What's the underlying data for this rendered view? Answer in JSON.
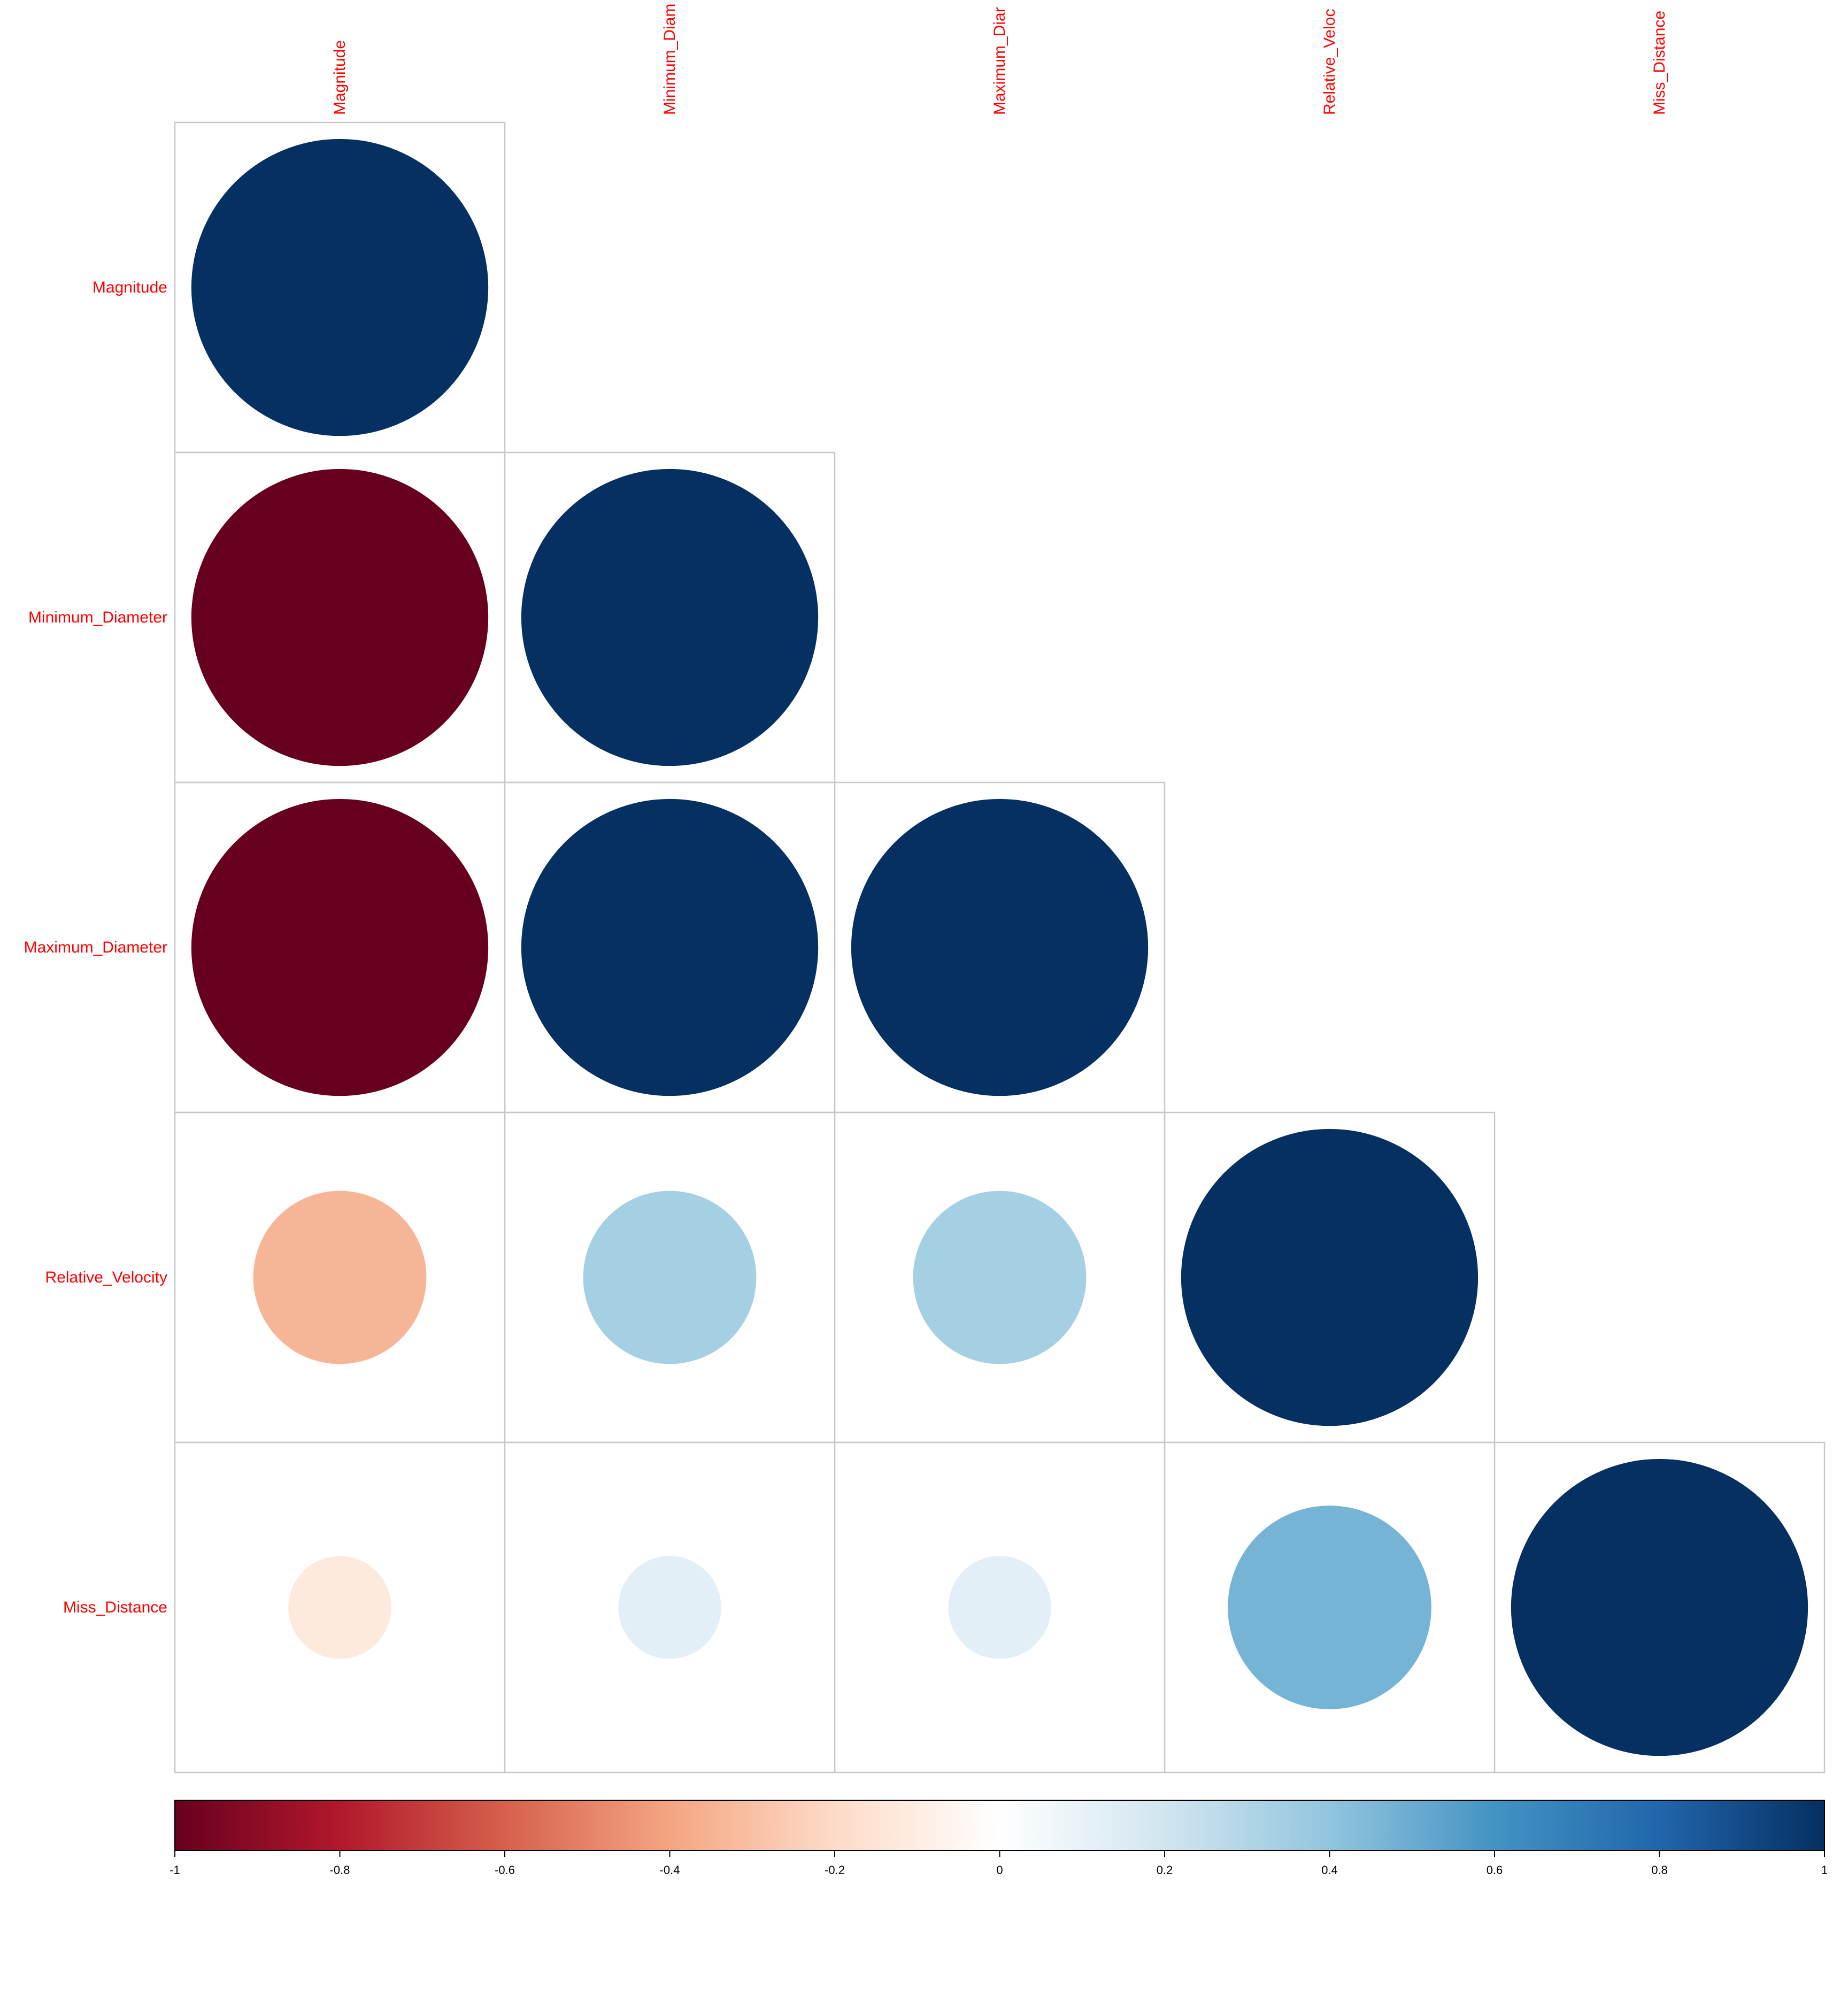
{
  "chart_data": {
    "type": "heatmap",
    "subtype": "correlation-circles-lower-triangle",
    "variables": [
      "Magnitude",
      "Minimum_Diameter",
      "Maximum_Diameter",
      "Relative_Velocity",
      "Miss_Distance"
    ],
    "column_labels": [
      "Magnitude",
      "Minimum_Diam",
      "Maximum_Diar",
      "Relative_Veloc",
      "Miss_Distance"
    ],
    "matrix": [
      [
        1.0,
        null,
        null,
        null,
        null
      ],
      [
        -1.0,
        1.0,
        null,
        null,
        null
      ],
      [
        -1.0,
        1.0,
        1.0,
        null,
        null
      ],
      [
        -0.34,
        0.34,
        0.34,
        1.0,
        null
      ],
      [
        -0.12,
        0.12,
        0.12,
        0.47,
        1.0
      ]
    ],
    "colorbar": {
      "range": [
        -1,
        1
      ],
      "ticks": [
        "-1",
        "-0.8",
        "-0.6",
        "-0.4",
        "-0.2",
        "0",
        "0.2",
        "0.4",
        "0.6",
        "0.8",
        "1"
      ],
      "colors": [
        "#67001F",
        "#B2182B",
        "#D6604D",
        "#F4A582",
        "#FDDBC7",
        "#FFFFFF",
        "#D1E5F0",
        "#92C5DE",
        "#4393C3",
        "#2166AC",
        "#053061"
      ]
    },
    "label_color": "#FF0000",
    "grid_color": "#C8C8C8"
  }
}
